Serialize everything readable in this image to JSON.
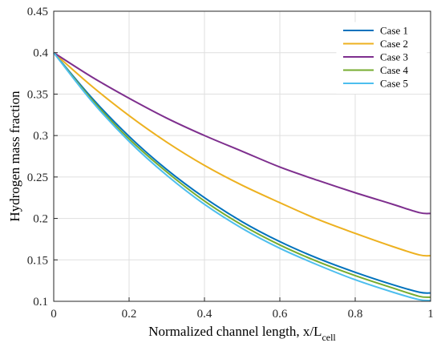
{
  "chart_data": {
    "type": "line",
    "title": "",
    "xlabel": "Normalized channel length, x/L",
    "xlabel_subscript": "cell",
    "ylabel": "Hydrogen mass fraction",
    "xlim": [
      0,
      1
    ],
    "ylim": [
      0.1,
      0.45
    ],
    "xticks": [
      "0",
      "0.2",
      "0.4",
      "0.6",
      "0.8",
      "1"
    ],
    "yticks": [
      "0.1",
      "0.15",
      "0.2",
      "0.25",
      "0.3",
      "0.35",
      "0.4",
      "0.45"
    ],
    "grid": true,
    "legend_position": "top-right",
    "x": [
      0,
      0.1,
      0.2,
      0.3,
      0.4,
      0.5,
      0.6,
      0.7,
      0.8,
      0.9,
      0.97,
      1.0
    ],
    "series": [
      {
        "name": "Case 1",
        "color": "#0072BD",
        "values": [
          0.4,
          0.346,
          0.299,
          0.259,
          0.225,
          0.196,
          0.172,
          0.152,
          0.135,
          0.12,
          0.111,
          0.11
        ]
      },
      {
        "name": "Case 2",
        "color": "#EDB120",
        "values": [
          0.4,
          0.36,
          0.324,
          0.292,
          0.264,
          0.24,
          0.219,
          0.199,
          0.182,
          0.166,
          0.156,
          0.155
        ]
      },
      {
        "name": "Case 3",
        "color": "#7E2F8E",
        "values": [
          0.4,
          0.371,
          0.345,
          0.321,
          0.3,
          0.281,
          0.262,
          0.246,
          0.231,
          0.217,
          0.207,
          0.206
        ]
      },
      {
        "name": "Case 4",
        "color": "#77AC30",
        "values": [
          0.4,
          0.344,
          0.296,
          0.256,
          0.221,
          0.192,
          0.168,
          0.148,
          0.131,
          0.116,
          0.106,
          0.105
        ]
      },
      {
        "name": "Case 5",
        "color": "#4DBEEE",
        "values": [
          0.4,
          0.342,
          0.293,
          0.252,
          0.217,
          0.188,
          0.164,
          0.144,
          0.126,
          0.111,
          0.102,
          0.101
        ]
      }
    ]
  }
}
